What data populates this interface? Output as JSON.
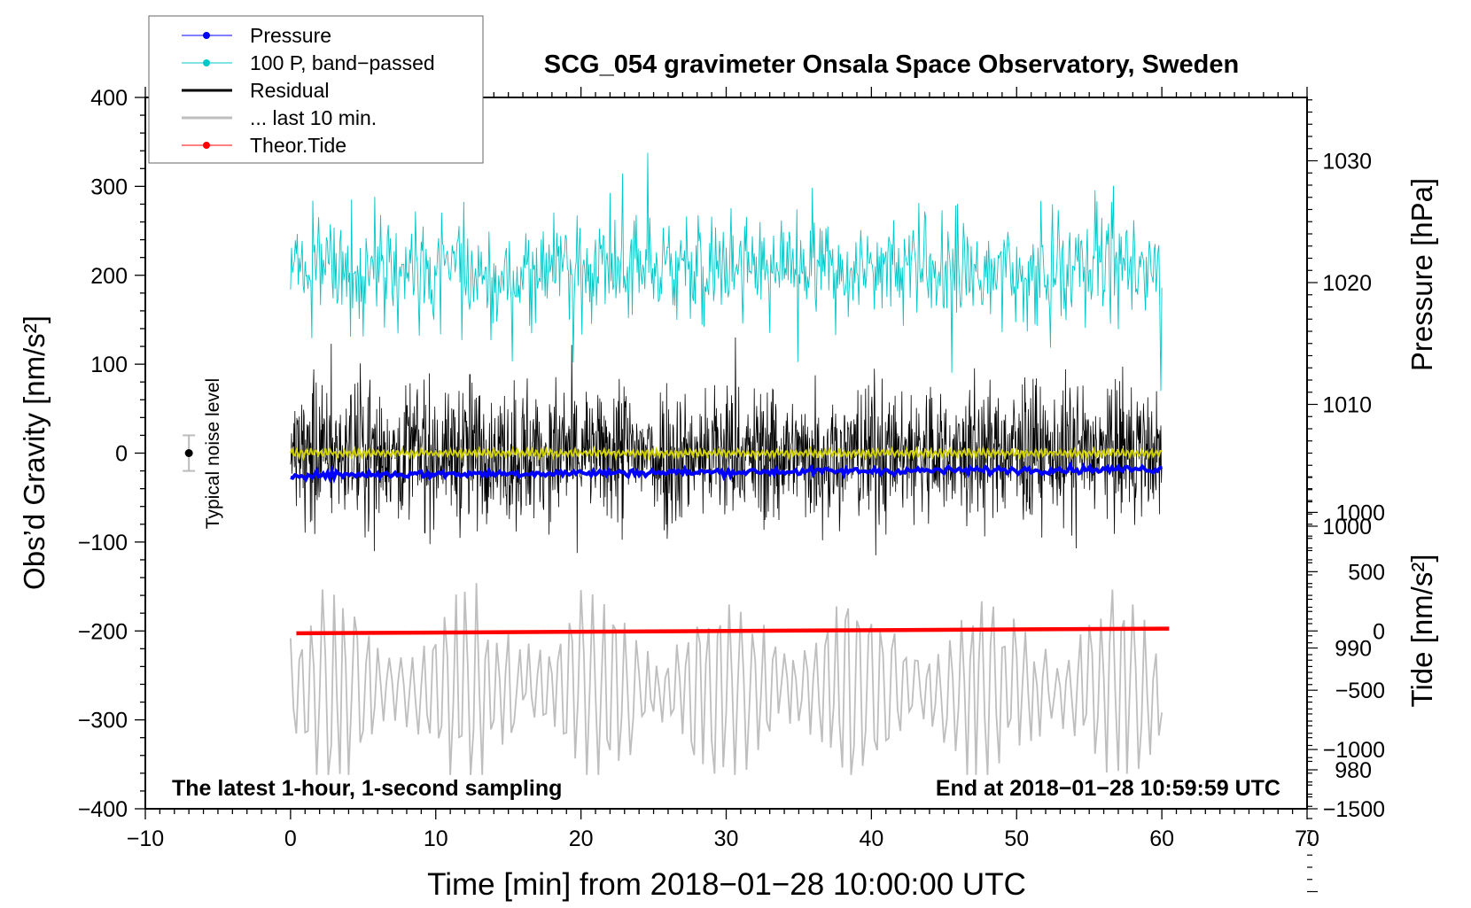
{
  "chart_data": {
    "type": "line",
    "title": "SCG_054 gravimeter Onsala Space Observatory, Sweden",
    "xlabel": "Time [min] from 2018−01−28 10:00:00 UTC",
    "ylabel_left": "Obs’d Gravity [nm/s²]",
    "ylabel_right_top": "Pressure [hPa]",
    "ylabel_right_bottom": "Tide [nm/s²]",
    "xlim": [
      -10,
      70
    ],
    "ylim_left": [
      -400,
      400
    ],
    "pressure_lim": [
      976.8,
      1035.2
    ],
    "tide_lim": [
      -1500,
      4500
    ],
    "x_ticks": [
      "−10",
      "0",
      "10",
      "20",
      "30",
      "40",
      "50",
      "60",
      "70"
    ],
    "x_tick_values": [
      -10,
      0,
      10,
      20,
      30,
      40,
      50,
      60,
      70
    ],
    "left_ticks": [
      "400",
      "300",
      "200",
      "100",
      "0",
      "−100",
      "−200",
      "−300",
      "−400"
    ],
    "left_tick_values": [
      400,
      300,
      200,
      100,
      0,
      -100,
      -200,
      -300,
      -400
    ],
    "pressure_ticks": [
      "1030",
      "1020",
      "1010",
      "1000",
      "990",
      "980"
    ],
    "pressure_tick_values": [
      1030,
      1020,
      1010,
      1000,
      990,
      980
    ],
    "tide_ticks": [
      "1000",
      "500",
      "0",
      "−500",
      "−1000",
      "−1500"
    ],
    "tide_tick_values": [
      1000,
      500,
      0,
      -500,
      -1000,
      -1500
    ],
    "annotations": {
      "left": "The latest 1-hour, 1-second sampling",
      "right": "End at 2018−01−28 10:59:59 UTC",
      "noise": "Typical noise level"
    },
    "noise_bar": {
      "x": -7,
      "y": 0,
      "err": 20
    },
    "legend": {
      "placement": "top-left",
      "entries": [
        {
          "label": "Pressure",
          "color": "#0000ff",
          "marker": true
        },
        {
          "label": "100 P, band−passed",
          "color": "#00c8c8",
          "marker": true
        },
        {
          "label": "Residual",
          "color": "#000000",
          "marker": false
        },
        {
          "label": "... last 10 min.",
          "color": "#bebebe",
          "marker": false
        },
        {
          "label": "Theor.Tide",
          "color": "#ff0000",
          "marker": true
        }
      ]
    },
    "series": [
      {
        "name": "Pressure",
        "axis": "pressure",
        "color": "#0000ff",
        "x_range": [
          0,
          60
        ],
        "start": 1004.2,
        "end": 1004.7,
        "noise": 0.15
      },
      {
        "name": "100 P, band-passed",
        "axis": "gravity",
        "color": "#00c8c8",
        "x_range": [
          0,
          60
        ],
        "center": 205,
        "amplitude": 35,
        "max": 340,
        "min": 70
      },
      {
        "name": "Residual",
        "axis": "gravity",
        "color": "#000000",
        "x_range": [
          0,
          60
        ],
        "center": 0,
        "amplitude": 38,
        "max": 130,
        "min": -115
      },
      {
        "name": "Residual smoothed",
        "axis": "gravity",
        "color": "#d0d000",
        "x_range": [
          0,
          60
        ],
        "center": 0,
        "amplitude": 4
      },
      {
        "name": "... last 10 min.",
        "axis": "gravity",
        "color": "#bebebe",
        "x_range": [
          0,
          60
        ],
        "center": -265,
        "amplitude": 60,
        "max": -138,
        "min": -362
      },
      {
        "name": "Theor.Tide",
        "axis": "tide",
        "color": "#ff0000",
        "x_range": [
          0.4,
          60.5
        ],
        "start": -20,
        "end": 20
      }
    ]
  }
}
